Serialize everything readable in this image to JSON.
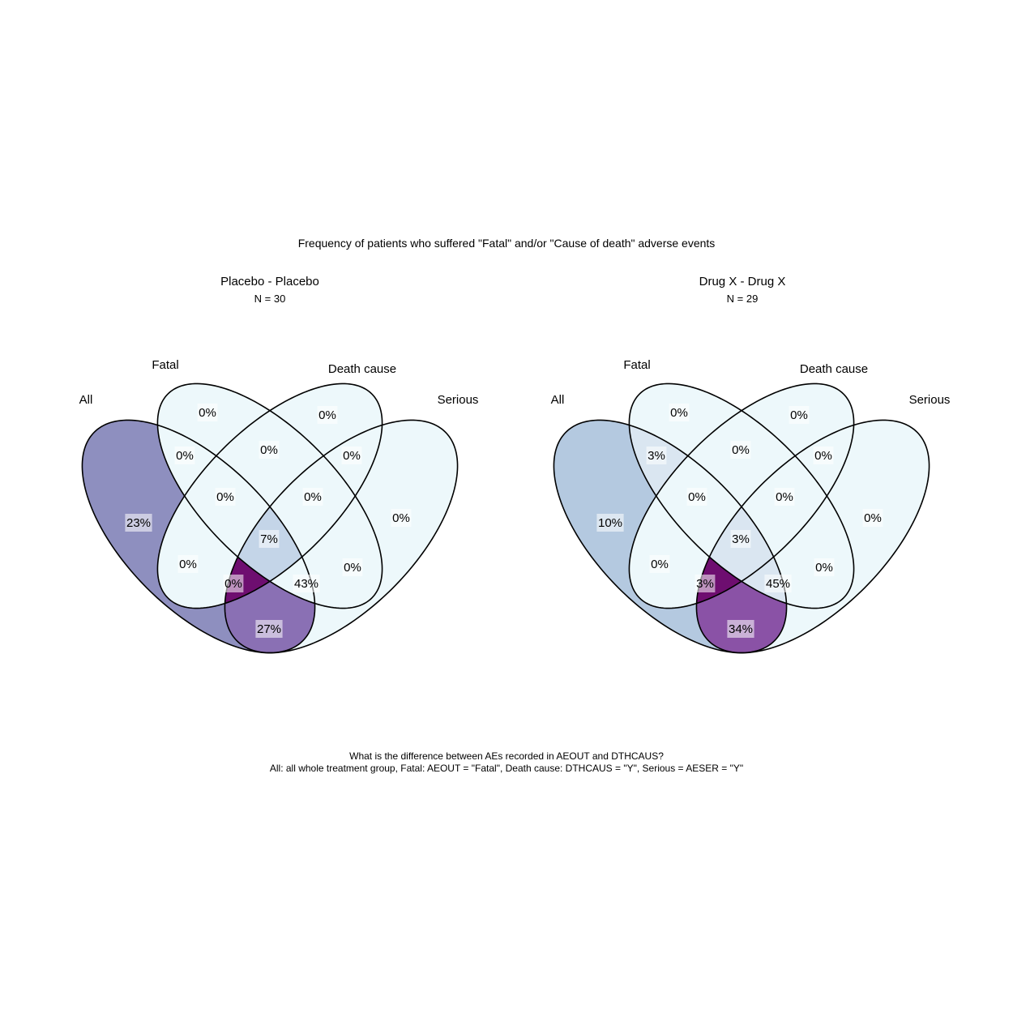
{
  "title": "Frequency of patients who suffered \"Fatal\" and/or \"Cause of death\" adverse events",
  "caption": {
    "line1": "What is the difference between AEs recorded in AEOUT and DTHCAUS?",
    "line2": "All: all whole treatment group, Fatal: AEOUT = \"Fatal\", Death cause: DTHCAUS = \"Y\", Serious = AESER = \"Y\""
  },
  "set_names": {
    "all": "All",
    "fatal": "Fatal",
    "death": "Death cause",
    "serious": "Serious"
  },
  "colors": {
    "outline": "#000000",
    "label_bg": "#ffffff",
    "scale": [
      "#edf8fb",
      "#b3cde3",
      "#8c96c6",
      "#8856a7",
      "#810f7c"
    ]
  },
  "panels": [
    {
      "title": "Placebo - Placebo",
      "n_label": "N = 30",
      "regions": [
        {
          "sets": "A",
          "label": "23%",
          "fill": "#8e8fbf"
        },
        {
          "sets": "F",
          "label": "0%",
          "fill": "#edf8fb"
        },
        {
          "sets": "D",
          "label": "0%",
          "fill": "#edf8fb"
        },
        {
          "sets": "S",
          "label": "0%",
          "fill": "#edf8fb"
        },
        {
          "sets": "A∩F",
          "label": "0%",
          "fill": "#edf8fb"
        },
        {
          "sets": "F∩D",
          "label": "0%",
          "fill": "#edf8fb"
        },
        {
          "sets": "D∩S",
          "label": "0%",
          "fill": "#edf8fb"
        },
        {
          "sets": "A∩D",
          "label": "0%",
          "fill": "#edf8fb"
        },
        {
          "sets": "F∩S",
          "label": "0%",
          "fill": "#edf8fb"
        },
        {
          "sets": "A∩F∩D",
          "label": "0%",
          "fill": "#edf8fb"
        },
        {
          "sets": "F∩D∩S",
          "label": "0%",
          "fill": "#edf8fb"
        },
        {
          "sets": "A∩F∩D∩S",
          "label": "7%",
          "fill": "#c4d5e8"
        },
        {
          "sets": "A∩F∩S",
          "label": "0%",
          "fill": "#edf8fb"
        },
        {
          "sets": "A∩D∩S",
          "label": "43%",
          "fill": "#6e0e70"
        },
        {
          "sets": "A∩S",
          "label": "27%",
          "fill": "#8a70b4"
        }
      ]
    },
    {
      "title": "Drug X - Drug X",
      "n_label": "N = 29",
      "regions": [
        {
          "sets": "A",
          "label": "10%",
          "fill": "#b4c9e0"
        },
        {
          "sets": "F",
          "label": "0%",
          "fill": "#edf8fb"
        },
        {
          "sets": "D",
          "label": "0%",
          "fill": "#edf8fb"
        },
        {
          "sets": "S",
          "label": "0%",
          "fill": "#edf8fb"
        },
        {
          "sets": "A∩F",
          "label": "3%",
          "fill": "#dae6f1"
        },
        {
          "sets": "F∩D",
          "label": "0%",
          "fill": "#edf8fb"
        },
        {
          "sets": "D∩S",
          "label": "0%",
          "fill": "#edf8fb"
        },
        {
          "sets": "A∩D",
          "label": "0%",
          "fill": "#edf8fb"
        },
        {
          "sets": "F∩S",
          "label": "0%",
          "fill": "#edf8fb"
        },
        {
          "sets": "A∩F∩D",
          "label": "0%",
          "fill": "#edf8fb"
        },
        {
          "sets": "F∩D∩S",
          "label": "0%",
          "fill": "#edf8fb"
        },
        {
          "sets": "A∩F∩D∩S",
          "label": "3%",
          "fill": "#dae6f1"
        },
        {
          "sets": "A∩F∩S",
          "label": "3%",
          "fill": "#dae6f1"
        },
        {
          "sets": "A∩D∩S",
          "label": "45%",
          "fill": "#6e0e70"
        },
        {
          "sets": "A∩S",
          "label": "34%",
          "fill": "#8a52a6"
        }
      ]
    }
  ]
}
